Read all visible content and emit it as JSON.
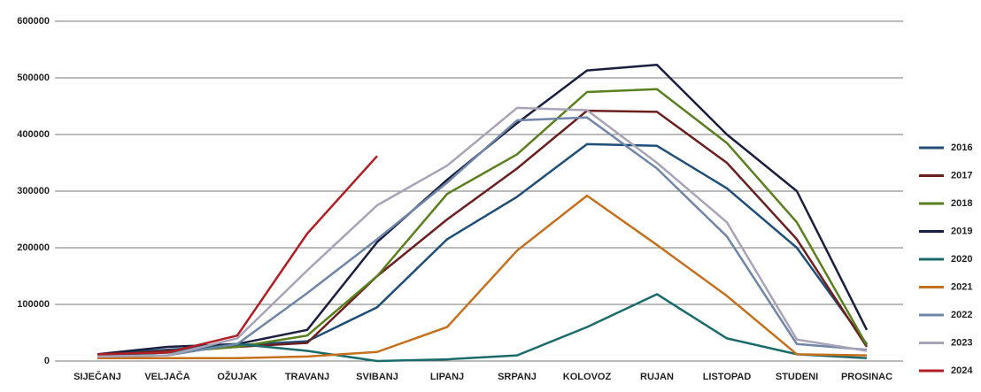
{
  "chart_data": {
    "type": "line",
    "categories": [
      "SIJEČANJ",
      "VELJAČA",
      "OŽUJAK",
      "TRAVANJ",
      "SVIBANJ",
      "LIPANJ",
      "SRPANJ",
      "KOLOVOZ",
      "RUJAN",
      "LISTOPAD",
      "STUDENI",
      "PROSINAC"
    ],
    "ylim": [
      0,
      600000
    ],
    "yticks": [
      0,
      100000,
      200000,
      300000,
      400000,
      500000,
      600000
    ],
    "grid": true,
    "legend": "right",
    "series": [
      {
        "name": "2016",
        "color": "#1f4e79",
        "values": [
          12000,
          20000,
          28000,
          35000,
          95000,
          215000,
          290000,
          383000,
          380000,
          305000,
          200000,
          30000
        ]
      },
      {
        "name": "2017",
        "color": "#6b1f1f",
        "values": [
          10000,
          18000,
          25000,
          32000,
          150000,
          250000,
          340000,
          442000,
          440000,
          350000,
          215000,
          25000
        ]
      },
      {
        "name": "2018",
        "color": "#5a7f1e",
        "values": [
          10000,
          15000,
          25000,
          45000,
          150000,
          295000,
          365000,
          475000,
          480000,
          385000,
          245000,
          28000
        ]
      },
      {
        "name": "2019",
        "color": "#1a1f3f",
        "values": [
          12000,
          25000,
          30000,
          55000,
          210000,
          320000,
          420000,
          513000,
          523000,
          400000,
          300000,
          55000
        ]
      },
      {
        "name": "2020",
        "color": "#1b6b6b",
        "values": [
          10000,
          15000,
          30000,
          18000,
          0,
          3000,
          10000,
          60000,
          118000,
          40000,
          12000,
          5000
        ]
      },
      {
        "name": "2021",
        "color": "#c4701c",
        "values": [
          5000,
          5000,
          5000,
          8000,
          16000,
          60000,
          195000,
          292000,
          205000,
          115000,
          12000,
          10000
        ]
      },
      {
        "name": "2022",
        "color": "#6f86a8",
        "values": [
          8000,
          10000,
          30000,
          120000,
          215000,
          315000,
          425000,
          430000,
          340000,
          220000,
          30000,
          20000
        ]
      },
      {
        "name": "2023",
        "color": "#a9a3b8",
        "values": [
          8000,
          10000,
          40000,
          160000,
          275000,
          345000,
          447000,
          443000,
          350000,
          245000,
          38000,
          18000
        ]
      },
      {
        "name": "2024",
        "color": "#b01e24",
        "values": [
          12000,
          15000,
          45000,
          225000,
          362000,
          null,
          null,
          null,
          null,
          null,
          null,
          null
        ]
      }
    ]
  }
}
